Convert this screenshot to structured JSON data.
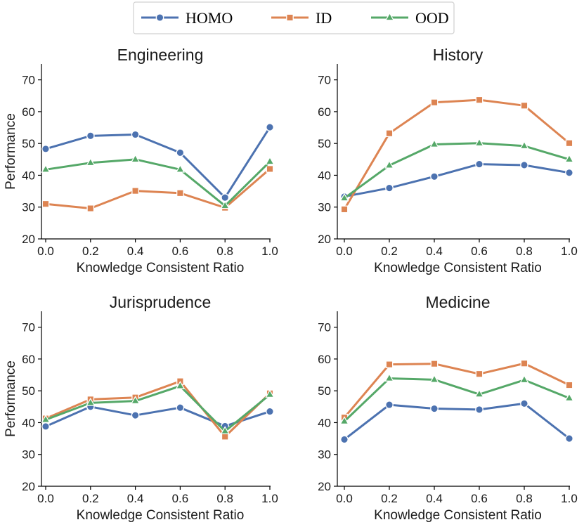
{
  "colors": {
    "HOMO": "#4c72b0",
    "ID": "#dd8452",
    "OOD": "#55a868",
    "axis": "#000000",
    "legend_border": "#d0d0d0"
  },
  "legend": {
    "entries": [
      {
        "name": "HOMO",
        "marker": "circle"
      },
      {
        "name": "ID",
        "marker": "square"
      },
      {
        "name": "OOD",
        "marker": "triangle"
      }
    ]
  },
  "chart_data": [
    {
      "type": "line",
      "title": "Engineering",
      "xlabel": "Knowledge Consistent Ratio",
      "ylabel": "Performance",
      "x": [
        0.0,
        0.2,
        0.4,
        0.6,
        0.8,
        1.0
      ],
      "xticks": [
        "0.0",
        "0.2",
        "0.4",
        "0.6",
        "0.8",
        "1.0"
      ],
      "yticks": [
        "20",
        "30",
        "40",
        "50",
        "60",
        "70"
      ],
      "ylim": [
        20,
        75
      ],
      "series": [
        {
          "name": "HOMO",
          "values": [
            48.3,
            52.4,
            52.8,
            47.1,
            33.0,
            55.1
          ]
        },
        {
          "name": "ID",
          "values": [
            31.0,
            29.6,
            35.1,
            34.4,
            29.8,
            42.0
          ]
        },
        {
          "name": "OOD",
          "values": [
            41.8,
            43.9,
            45.0,
            41.8,
            30.4,
            44.3
          ]
        }
      ]
    },
    {
      "type": "line",
      "title": "History",
      "xlabel": "Knowledge Consistent Ratio",
      "ylabel": "",
      "x": [
        0.0,
        0.2,
        0.4,
        0.6,
        0.8,
        1.0
      ],
      "xticks": [
        "0.0",
        "0.2",
        "0.4",
        "0.6",
        "0.8",
        "1.0"
      ],
      "yticks": [
        "20",
        "30",
        "40",
        "50",
        "60",
        "70"
      ],
      "ylim": [
        20,
        75
      ],
      "series": [
        {
          "name": "HOMO",
          "values": [
            33.3,
            36.0,
            39.6,
            43.5,
            43.2,
            40.8
          ]
        },
        {
          "name": "ID",
          "values": [
            29.3,
            53.2,
            62.9,
            63.7,
            61.9,
            50.1
          ]
        },
        {
          "name": "OOD",
          "values": [
            32.8,
            43.1,
            49.7,
            50.1,
            49.2,
            45.0
          ]
        }
      ]
    },
    {
      "type": "line",
      "title": "Jurisprudence",
      "xlabel": "Knowledge Consistent Ratio",
      "ylabel": "Performance",
      "x": [
        0.0,
        0.2,
        0.4,
        0.6,
        0.8,
        1.0
      ],
      "xticks": [
        "0.0",
        "0.2",
        "0.4",
        "0.6",
        "0.8",
        "1.0"
      ],
      "yticks": [
        "20",
        "30",
        "40",
        "50",
        "60",
        "70"
      ],
      "ylim": [
        20,
        75
      ],
      "series": [
        {
          "name": "HOMO",
          "values": [
            38.8,
            45.0,
            42.3,
            44.7,
            38.9,
            43.5
          ]
        },
        {
          "name": "ID",
          "values": [
            41.3,
            47.3,
            47.9,
            53.0,
            35.6,
            49.2
          ]
        },
        {
          "name": "OOD",
          "values": [
            40.9,
            46.2,
            46.8,
            51.5,
            37.3,
            48.8
          ]
        }
      ]
    },
    {
      "type": "line",
      "title": "Medicine",
      "xlabel": "Knowledge Consistent Ratio",
      "ylabel": "",
      "x": [
        0.0,
        0.2,
        0.4,
        0.6,
        0.8,
        1.0
      ],
      "xticks": [
        "0.0",
        "0.2",
        "0.4",
        "0.6",
        "0.8",
        "1.0"
      ],
      "yticks": [
        "20",
        "30",
        "40",
        "50",
        "60",
        "70"
      ],
      "ylim": [
        20,
        75
      ],
      "series": [
        {
          "name": "HOMO",
          "values": [
            34.7,
            45.6,
            44.4,
            44.1,
            46.0,
            35.0
          ]
        },
        {
          "name": "ID",
          "values": [
            41.6,
            58.3,
            58.5,
            55.3,
            58.6,
            51.8
          ]
        },
        {
          "name": "OOD",
          "values": [
            40.4,
            53.9,
            53.5,
            48.9,
            53.4,
            47.7
          ]
        }
      ]
    }
  ]
}
